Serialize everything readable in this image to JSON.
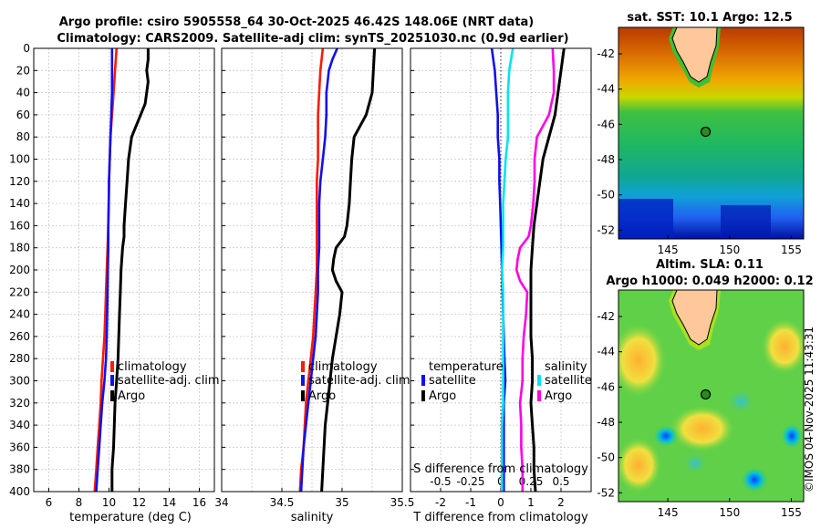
{
  "figure": {
    "title_line1": "Argo profile: csiro 5905558_64 30-Oct-2025 46.42S 148.06E (NRT data)",
    "title_line2": "Climatology: CARS2009. Satellite-adj clim: synTS_20251030.nc (0.9d earlier)",
    "stamp": "©IMOS 04-Nov-2025 11:43:31"
  },
  "colors": {
    "climatology": "#ff1a00",
    "satellite": "#1010ee",
    "argo": "#000000",
    "sal_satellite": "#00e5f0",
    "sal_argo": "#ff00e6",
    "land": "#ffc89a"
  },
  "chart_data": [
    {
      "type": "line",
      "name": "temperature-panel",
      "xlabel": "temperature (deg C)",
      "ylabel": "",
      "xlim": [
        5,
        17
      ],
      "ylim": [
        400,
        0
      ],
      "xticks": [
        6,
        8,
        10,
        12,
        14,
        16
      ],
      "yticks": [
        0,
        20,
        40,
        60,
        80,
        100,
        120,
        140,
        160,
        180,
        200,
        220,
        240,
        260,
        280,
        300,
        320,
        340,
        360,
        380,
        400
      ],
      "grid": true,
      "legend": [
        "climatology",
        "satellite-adj. clim",
        "Argo"
      ],
      "series": [
        {
          "name": "climatology",
          "color_key": "climatology",
          "depth": [
            0,
            20,
            40,
            60,
            80,
            100,
            120,
            140,
            160,
            180,
            200,
            220,
            240,
            260,
            280,
            300,
            320,
            340,
            360,
            380,
            400
          ],
          "values": [
            10.5,
            10.4,
            10.3,
            10.2,
            10.1,
            10.05,
            10.0,
            9.98,
            9.95,
            9.9,
            9.85,
            9.8,
            9.75,
            9.7,
            9.6,
            9.5,
            9.45,
            9.35,
            9.25,
            9.15,
            9.05
          ]
        },
        {
          "name": "satellite-adj. clim",
          "color_key": "satellite",
          "depth": [
            0,
            20,
            40,
            60,
            80,
            100,
            120,
            140,
            160,
            180,
            200,
            220,
            240,
            260,
            280,
            300,
            320,
            340,
            360,
            380,
            400
          ],
          "values": [
            10.2,
            10.2,
            10.2,
            10.15,
            10.1,
            10.05,
            10.0,
            9.98,
            9.95,
            9.95,
            9.92,
            9.9,
            9.88,
            9.85,
            9.8,
            9.7,
            9.55,
            9.45,
            9.35,
            9.25,
            9.15
          ]
        },
        {
          "name": "Argo",
          "color_key": "argo",
          "depth": [
            0,
            10,
            20,
            30,
            40,
            50,
            60,
            70,
            80,
            90,
            100,
            120,
            140,
            160,
            170,
            180,
            200,
            220,
            240,
            260,
            280,
            300,
            320,
            340,
            360,
            380,
            400
          ],
          "values": [
            12.6,
            12.6,
            12.5,
            12.6,
            12.5,
            12.4,
            12.1,
            11.8,
            11.5,
            11.4,
            11.3,
            11.2,
            11.1,
            11.0,
            11.0,
            10.9,
            10.8,
            10.75,
            10.7,
            10.65,
            10.6,
            10.5,
            10.4,
            10.35,
            10.3,
            10.2,
            10.2
          ]
        }
      ]
    },
    {
      "type": "line",
      "name": "salinity-panel",
      "xlabel": "salinity",
      "ylabel": "",
      "xlim": [
        34,
        35.5
      ],
      "ylim": [
        400,
        0
      ],
      "xticks": [
        34,
        34.5,
        35,
        35.5
      ],
      "grid": true,
      "legend": [
        "climatology",
        "satellite-adj. clim",
        "Argo"
      ],
      "series": [
        {
          "name": "climatology",
          "color_key": "climatology",
          "depth": [
            0,
            20,
            40,
            60,
            80,
            100,
            120,
            140,
            160,
            180,
            200,
            220,
            240,
            260,
            280,
            300,
            320,
            340,
            360,
            380,
            400
          ],
          "values": [
            34.84,
            34.82,
            34.81,
            34.8,
            34.8,
            34.8,
            34.79,
            34.79,
            34.79,
            34.79,
            34.79,
            34.78,
            34.77,
            34.76,
            34.74,
            34.72,
            34.7,
            34.69,
            34.68,
            34.66,
            34.65
          ]
        },
        {
          "name": "satellite-adj. clim",
          "color_key": "satellite",
          "depth": [
            0,
            10,
            20,
            30,
            40,
            60,
            80,
            100,
            120,
            140,
            160,
            180,
            200,
            220,
            240,
            260,
            280,
            300,
            320,
            340,
            360,
            380,
            400
          ],
          "values": [
            34.96,
            34.92,
            34.89,
            34.88,
            34.87,
            34.87,
            34.86,
            34.84,
            34.82,
            34.81,
            34.81,
            34.81,
            34.8,
            34.8,
            34.79,
            34.78,
            34.76,
            34.74,
            34.72,
            34.7,
            34.68,
            34.67,
            34.66
          ]
        },
        {
          "name": "Argo",
          "color_key": "argo",
          "depth": [
            0,
            20,
            40,
            60,
            80,
            100,
            120,
            140,
            160,
            170,
            180,
            190,
            200,
            210,
            220,
            240,
            260,
            280,
            300,
            320,
            340,
            360,
            380,
            400
          ],
          "values": [
            35.27,
            35.26,
            35.25,
            35.2,
            35.1,
            35.08,
            35.07,
            35.06,
            35.04,
            35.02,
            34.95,
            34.93,
            34.92,
            34.95,
            35.0,
            34.98,
            34.95,
            34.92,
            34.9,
            34.88,
            34.86,
            34.85,
            34.84,
            34.83
          ]
        }
      ]
    },
    {
      "type": "line",
      "name": "difference-panel",
      "xlabel": "T difference from climatology",
      "x2label": "S difference from climatology",
      "xlim": [
        -3,
        3
      ],
      "ylim": [
        400,
        0
      ],
      "xticks": [
        -2,
        -1,
        0,
        1,
        2
      ],
      "x2ticks": [
        -0.5,
        -0.25,
        0,
        0.25,
        0.5
      ],
      "legend_temperature": {
        "title": "temperature",
        "items": [
          "satellite",
          "Argo"
        ]
      },
      "legend_salinity": {
        "title": "salinity",
        "items": [
          "satellite",
          "Argo"
        ]
      },
      "series": [
        {
          "name": "temperature satellite",
          "color_key": "satellite",
          "depth": [
            0,
            20,
            40,
            60,
            80,
            100,
            120,
            140,
            160,
            180,
            200,
            220,
            240,
            260,
            280,
            300,
            320,
            340,
            360,
            380,
            400
          ],
          "values": [
            -0.3,
            -0.2,
            -0.15,
            -0.1,
            -0.1,
            -0.05,
            -0.05,
            -0.02,
            0.0,
            0.02,
            0.04,
            0.06,
            0.08,
            0.1,
            0.12,
            0.15,
            0.1,
            0.1,
            0.1,
            0.1,
            0.1
          ]
        },
        {
          "name": "temperature Argo",
          "color_key": "argo",
          "depth": [
            0,
            20,
            40,
            60,
            80,
            100,
            120,
            140,
            160,
            180,
            200,
            220,
            240,
            260,
            280,
            300,
            320,
            340,
            360,
            380,
            400
          ],
          "values": [
            2.1,
            2.0,
            1.9,
            1.8,
            1.6,
            1.4,
            1.3,
            1.2,
            1.1,
            1.05,
            1.0,
            1.0,
            1.0,
            1.0,
            1.05,
            1.05,
            1.0,
            1.05,
            1.1,
            1.1,
            1.15
          ]
        },
        {
          "name": "salinity satellite",
          "color_key": "sal_satellite",
          "depth": [
            0,
            20,
            40,
            60,
            80,
            100,
            120,
            140,
            160,
            180,
            200,
            220,
            240,
            260,
            280,
            300,
            320,
            340,
            360,
            380,
            400
          ],
          "values": [
            0.1,
            0.07,
            0.06,
            0.06,
            0.06,
            0.04,
            0.03,
            0.02,
            0.02,
            0.02,
            0.01,
            0.02,
            0.02,
            0.02,
            0.02,
            0.02,
            0.02,
            0.01,
            0.01,
            0.01,
            0.01
          ]
        },
        {
          "name": "salinity Argo",
          "color_key": "sal_argo",
          "depth": [
            0,
            20,
            40,
            60,
            80,
            100,
            120,
            140,
            160,
            170,
            180,
            190,
            200,
            210,
            220,
            240,
            260,
            280,
            300,
            320,
            340,
            360,
            380,
            400
          ],
          "values": [
            0.43,
            0.44,
            0.44,
            0.4,
            0.3,
            0.28,
            0.28,
            0.27,
            0.25,
            0.23,
            0.16,
            0.14,
            0.13,
            0.16,
            0.22,
            0.21,
            0.19,
            0.18,
            0.18,
            0.16,
            0.17,
            0.17,
            0.18,
            0.18
          ]
        }
      ]
    },
    {
      "type": "heatmap",
      "name": "sst-map",
      "title": "sat. SST: 10.1 Argo: 12.5",
      "xlim": [
        141,
        156
      ],
      "ylim": [
        -52.5,
        -40.5
      ],
      "xticks": [
        145,
        150,
        155
      ],
      "yticks": [
        -42,
        -44,
        -46,
        -48,
        -50,
        -52
      ],
      "float_lon": 148.06,
      "float_lat": -46.42
    },
    {
      "type": "heatmap",
      "name": "sla-map",
      "title_line1": "Altim. SLA: 0.11",
      "title_line2": "Argo h1000: 0.049 h2000: 0.12",
      "xlim": [
        141,
        156
      ],
      "ylim": [
        -52.5,
        -40.5
      ],
      "xticks": [
        145,
        150,
        155
      ],
      "yticks": [
        -42,
        -44,
        -46,
        -48,
        -50,
        -52
      ],
      "float_lon": 148.06,
      "float_lat": -46.42
    }
  ]
}
